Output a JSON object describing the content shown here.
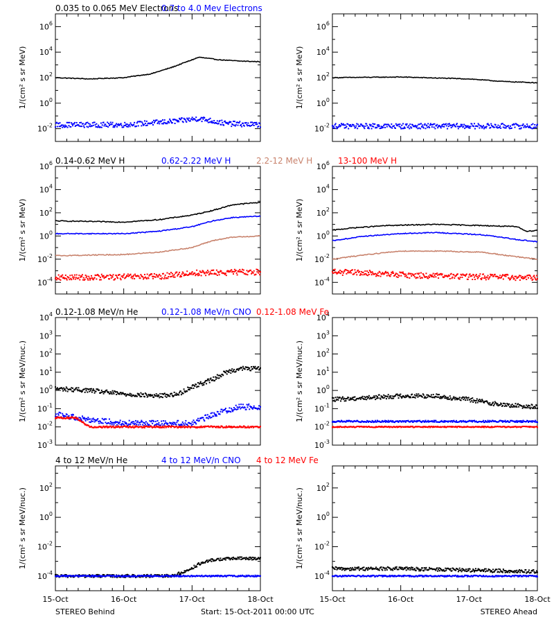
{
  "footer": {
    "left": "STEREO Behind",
    "center": "Start: 15-Oct-2011 00:00 UTC",
    "right": "STEREO Ahead"
  },
  "x_axis": {
    "ticks": [
      "15-Oct",
      "16-Oct",
      "17-Oct",
      "18-Oct"
    ]
  },
  "chart_data": [
    {
      "type": "scatter",
      "row": 1,
      "side": "behind",
      "ylabel": "1/(cm² s sr MeV)",
      "y_scale": "log",
      "ylim_exp": [
        -3,
        7
      ],
      "y_ticks_exp": [
        -2,
        0,
        2,
        4,
        6
      ],
      "legend": [
        {
          "name": "0.035 to 0.065 MeV Electrons",
          "color": "#000000"
        },
        {
          "name": "0.7 to 4.0 Mev Electrons",
          "color": "#0000ff"
        }
      ],
      "series": [
        {
          "name": "0.035 to 0.065 MeV Electrons",
          "color": "#000000",
          "style": "line",
          "noise": 0.03,
          "x": [
            0,
            0.5,
            1.0,
            1.4,
            1.7,
            1.9,
            2.1,
            2.4,
            2.7,
            3.0
          ],
          "log_y": [
            2.0,
            1.9,
            2.0,
            2.3,
            2.8,
            3.2,
            3.6,
            3.4,
            3.3,
            3.25
          ]
        },
        {
          "name": "0.7 to 4.0 Mev Electrons",
          "color": "#0000ff",
          "style": "points",
          "noise": 0.2,
          "x": [
            0,
            1.0,
            1.8,
            2.1,
            2.5,
            3.0
          ],
          "log_y": [
            -1.7,
            -1.7,
            -1.4,
            -1.2,
            -1.6,
            -1.7
          ]
        }
      ]
    },
    {
      "type": "scatter",
      "row": 1,
      "side": "ahead",
      "ylabel": "1/(cm² s sr MeV)",
      "y_scale": "log",
      "ylim_exp": [
        -3,
        7
      ],
      "y_ticks_exp": [
        -2,
        0,
        2,
        4,
        6
      ],
      "series": [
        {
          "color": "#000000",
          "style": "line",
          "noise": 0.03,
          "x": [
            0,
            1.0,
            2.0,
            2.5,
            3.0
          ],
          "log_y": [
            2.0,
            2.05,
            1.9,
            1.7,
            1.6
          ]
        },
        {
          "color": "#0000ff",
          "style": "points",
          "noise": 0.2,
          "x": [
            0,
            1.5,
            3.0
          ],
          "log_y": [
            -1.8,
            -1.8,
            -1.8
          ]
        }
      ]
    },
    {
      "type": "scatter",
      "row": 2,
      "side": "behind",
      "ylabel": "1/(cm² s sr MeV)",
      "y_scale": "log",
      "ylim_exp": [
        -5,
        6
      ],
      "y_ticks_exp": [
        -4,
        -2,
        0,
        2,
        4,
        6
      ],
      "legend": [
        {
          "name": "0.14-0.62 MeV H",
          "color": "#000000"
        },
        {
          "name": "0.62-2.22 MeV H",
          "color": "#0000ff"
        },
        {
          "name": "2.2-12 MeV H",
          "color": "#c8826c"
        },
        {
          "name": "13-100 MeV H",
          "color": "#ff0000"
        }
      ],
      "series": [
        {
          "name": "0.14-0.62 MeV H",
          "color": "#000000",
          "style": "line",
          "noise": 0.04,
          "x": [
            0,
            1.0,
            1.5,
            2.0,
            2.3,
            2.6,
            3.0
          ],
          "log_y": [
            1.3,
            1.2,
            1.4,
            1.8,
            2.2,
            2.7,
            2.9
          ]
        },
        {
          "name": "0.62-2.22 MeV H",
          "color": "#0000ff",
          "style": "line",
          "noise": 0.04,
          "x": [
            0,
            1.0,
            1.5,
            2.0,
            2.3,
            2.6,
            3.0
          ],
          "log_y": [
            0.2,
            0.2,
            0.4,
            0.8,
            1.3,
            1.6,
            1.7
          ]
        },
        {
          "name": "2.2-12 MeV H",
          "color": "#c8826c",
          "style": "line",
          "noise": 0.04,
          "x": [
            0,
            1.0,
            1.5,
            2.0,
            2.3,
            2.6,
            3.0
          ],
          "log_y": [
            -1.7,
            -1.6,
            -1.4,
            -1.0,
            -0.4,
            -0.1,
            0.0
          ]
        },
        {
          "name": "13-100 MeV H",
          "color": "#ff0000",
          "style": "points",
          "noise": 0.25,
          "x": [
            0,
            1.5,
            2.0,
            3.0
          ],
          "log_y": [
            -3.6,
            -3.5,
            -3.2,
            -3.1
          ]
        }
      ]
    },
    {
      "type": "scatter",
      "row": 2,
      "side": "ahead",
      "ylabel": "1/(cm² s sr MeV)",
      "y_scale": "log",
      "ylim_exp": [
        -5,
        6
      ],
      "y_ticks_exp": [
        -4,
        -2,
        0,
        2,
        4,
        6
      ],
      "series": [
        {
          "color": "#000000",
          "style": "line",
          "noise": 0.04,
          "x": [
            0,
            0.3,
            0.8,
            1.5,
            2.2,
            2.7,
            2.85,
            3.0
          ],
          "log_y": [
            0.5,
            0.7,
            0.9,
            1.0,
            0.9,
            0.8,
            0.4,
            0.5
          ]
        },
        {
          "color": "#0000ff",
          "style": "line",
          "noise": 0.04,
          "x": [
            0,
            0.5,
            1.0,
            1.5,
            2.2,
            2.7,
            3.0
          ],
          "log_y": [
            -0.4,
            0.0,
            0.2,
            0.3,
            0.1,
            -0.3,
            -0.5
          ]
        },
        {
          "color": "#c8826c",
          "style": "line",
          "noise": 0.04,
          "x": [
            0,
            0.5,
            1.0,
            1.5,
            2.2,
            2.7,
            3.0
          ],
          "log_y": [
            -2.0,
            -1.6,
            -1.3,
            -1.3,
            -1.4,
            -1.8,
            -2.0
          ]
        },
        {
          "color": "#ff0000",
          "style": "points",
          "noise": 0.25,
          "x": [
            0,
            0.5,
            1.2,
            2.0,
            3.0
          ],
          "log_y": [
            -3.1,
            -3.2,
            -3.4,
            -3.5,
            -3.6
          ]
        }
      ]
    },
    {
      "type": "scatter",
      "row": 3,
      "side": "behind",
      "ylabel": "1/(cm² s sr MeV/nuc.)",
      "y_scale": "log",
      "ylim_exp": [
        -3,
        4
      ],
      "y_ticks_exp": [
        -3,
        -2,
        -1,
        0,
        1,
        2,
        3,
        4
      ],
      "legend": [
        {
          "name": "0.12-1.08 MeV/n He",
          "color": "#000000"
        },
        {
          "name": "0.12-1.08 MeV/n CNO",
          "color": "#0000ff"
        },
        {
          "name": "0.12-1.08 MeV Fe",
          "color": "#ff0000"
        }
      ],
      "series": [
        {
          "name": "0.12-1.08 MeV/n He",
          "color": "#000000",
          "style": "points",
          "noise": 0.12,
          "x": [
            0,
            0.5,
            1.0,
            1.5,
            1.8,
            2.0,
            2.3,
            2.5,
            2.7,
            3.0
          ],
          "log_y": [
            0.1,
            0.0,
            -0.2,
            -0.3,
            -0.2,
            0.2,
            0.6,
            1.0,
            1.2,
            1.2
          ]
        },
        {
          "name": "0.12-1.08 MeV/n CNO",
          "color": "#0000ff",
          "style": "points",
          "noise": 0.15,
          "x": [
            0,
            0.5,
            1.0,
            2.0,
            2.4,
            2.7,
            3.0
          ],
          "log_y": [
            -1.3,
            -1.6,
            -1.8,
            -1.8,
            -1.2,
            -0.9,
            -0.9
          ]
        },
        {
          "name": "0.12-1.08 MeV Fe",
          "color": "#ff0000",
          "style": "points",
          "noise": 0.05,
          "x": [
            0,
            0.3,
            0.5,
            3.0
          ],
          "log_y": [
            -1.5,
            -1.5,
            -2.0,
            -2.0
          ]
        }
      ]
    },
    {
      "type": "scatter",
      "row": 3,
      "side": "ahead",
      "ylabel": "1/(cm² s sr MeV/nuc.)",
      "y_scale": "log",
      "ylim_exp": [
        -3,
        4
      ],
      "y_ticks_exp": [
        -3,
        -2,
        -1,
        0,
        1,
        2,
        3,
        4
      ],
      "series": [
        {
          "color": "#000000",
          "style": "points",
          "noise": 0.12,
          "x": [
            0,
            0.5,
            1.0,
            1.5,
            2.0,
            2.5,
            3.0
          ],
          "log_y": [
            -0.5,
            -0.4,
            -0.3,
            -0.3,
            -0.5,
            -0.8,
            -0.9
          ]
        },
        {
          "color": "#0000ff",
          "style": "points",
          "noise": 0.05,
          "x": [
            0,
            3.0
          ],
          "log_y": [
            -1.7,
            -1.7
          ]
        },
        {
          "color": "#ff0000",
          "style": "points",
          "noise": 0.03,
          "x": [
            0,
            3.0
          ],
          "log_y": [
            -2.0,
            -2.0
          ]
        }
      ]
    },
    {
      "type": "scatter",
      "row": 4,
      "side": "behind",
      "ylabel": "1/(cm² s sr MeV/nuc.)",
      "y_scale": "log",
      "ylim_exp": [
        -5,
        3.5
      ],
      "y_ticks_exp": [
        -4,
        -2,
        0,
        2
      ],
      "legend": [
        {
          "name": "4 to 12 MeV/n He",
          "color": "#000000"
        },
        {
          "name": "4 to 12 MeV/n CNO",
          "color": "#0000ff"
        },
        {
          "name": "4 to 12 MeV Fe",
          "color": "#ff0000"
        }
      ],
      "series": [
        {
          "name": "4 to 12 MeV/n He",
          "color": "#000000",
          "style": "points",
          "noise": 0.1,
          "x": [
            0,
            1.7,
            1.9,
            2.1,
            2.3,
            2.6,
            3.0
          ],
          "log_y": [
            -4.0,
            -4.0,
            -3.7,
            -3.2,
            -2.9,
            -2.8,
            -2.8
          ]
        },
        {
          "name": "4 to 12 MeV/n CNO",
          "color": "#0000ff",
          "style": "points",
          "noise": 0.05,
          "x": [
            2.0,
            3.0
          ],
          "log_y": [
            -4.0,
            -4.0
          ]
        }
      ]
    },
    {
      "type": "scatter",
      "row": 4,
      "side": "ahead",
      "ylabel": "1/(cm² s sr MeV/nuc.)",
      "y_scale": "log",
      "ylim_exp": [
        -5,
        3.5
      ],
      "y_ticks_exp": [
        -4,
        -2,
        0,
        2
      ],
      "series": [
        {
          "color": "#000000",
          "style": "points",
          "noise": 0.12,
          "x": [
            0,
            1.0,
            2.0,
            3.0
          ],
          "log_y": [
            -3.5,
            -3.5,
            -3.6,
            -3.7
          ]
        },
        {
          "color": "#0000ff",
          "style": "points",
          "noise": 0.05,
          "x": [
            0,
            3.0
          ],
          "log_y": [
            -4.0,
            -4.0
          ]
        }
      ]
    }
  ]
}
